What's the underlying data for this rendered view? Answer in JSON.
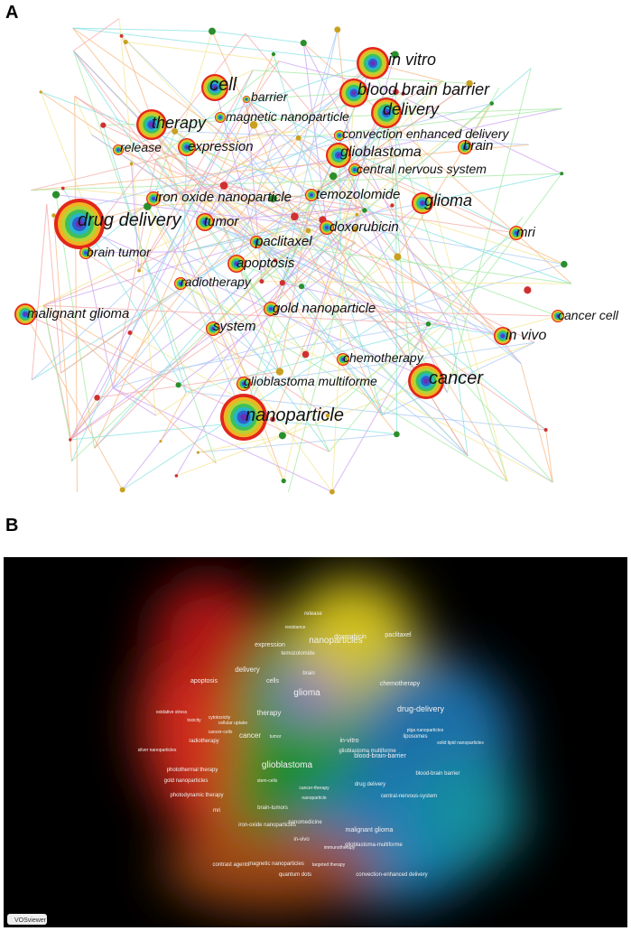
{
  "panels": [
    {
      "label": "A",
      "nodes": [
        "in vitro",
        "cell",
        "barrier",
        "blood brain barrier",
        "delivery",
        "magnetic nanoparticle",
        "therapy",
        "convection enhanced delivery",
        "release",
        "expression",
        "glioblastoma",
        "brain",
        "central nervous system",
        "iron oxide nanoparticle",
        "temozolomide",
        "glioma",
        "drug delivery",
        "tumor",
        "doxorubicin",
        "mri",
        "paclitaxel",
        "brain tumor",
        "apoptosis",
        "radiotherapy",
        "malignant glioma",
        "gold nanoparticle",
        "system",
        "in vivo",
        "cancer cell",
        "chemotherapy",
        "cancer",
        "glioblastoma multiforme",
        "nanoparticle"
      ]
    },
    {
      "label": "B",
      "terms": [
        "nanoparticles",
        "glioma",
        "glioblastoma",
        "drug-delivery",
        "therapy",
        "cells",
        "delivery",
        "cancer",
        "chemotherapy",
        "in-vitro",
        "blood-brain-barrier",
        "doxorubicin",
        "paclitaxel",
        "apoptosis",
        "expression",
        "temozolomide",
        "brain",
        "release",
        "liposomes",
        "glioblastoma multiforme",
        "blood-brain barrier",
        "drug delivery",
        "central-nervous-system",
        "malignant glioma",
        "glioblastoma-multiforme",
        "in-vivo",
        "nanomedicine",
        "radiotherapy",
        "photothermal therapy",
        "gold nanoparticles",
        "photodynamic therapy",
        "mri",
        "iron-oxide nanoparticles",
        "brain-tumors",
        "magnetic nanoparticles",
        "contrast agents",
        "quantum dots",
        "convection-enhanced delivery",
        "targeted therapy",
        "immunotherapy",
        "cancer-therapy",
        "nanoparticle",
        "stem-cells",
        "cytotoxicity",
        "cellular uptake",
        "toxicity",
        "oxidative stress",
        "silver nanoparticles",
        "cancer-cells",
        "resistance",
        "solid lipid nanoparticles",
        "plga nanoparticles",
        "tumor"
      ],
      "badge": "VOSviewer"
    }
  ]
}
